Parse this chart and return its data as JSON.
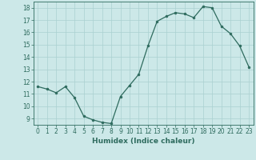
{
  "x": [
    0,
    1,
    2,
    3,
    4,
    5,
    6,
    7,
    8,
    9,
    10,
    11,
    12,
    13,
    14,
    15,
    16,
    17,
    18,
    19,
    20,
    21,
    22,
    23
  ],
  "y": [
    11.6,
    11.4,
    11.1,
    11.6,
    10.7,
    9.2,
    8.9,
    8.7,
    8.6,
    10.8,
    11.7,
    12.6,
    14.9,
    16.9,
    17.3,
    17.6,
    17.5,
    17.2,
    18.1,
    18.0,
    16.5,
    15.9,
    14.9,
    13.2
  ],
  "line_color": "#2e6b5e",
  "marker_color": "#2e6b5e",
  "bg_color": "#cce8e8",
  "grid_color": "#aad0d0",
  "xlabel": "Humidex (Indice chaleur)",
  "xlim": [
    -0.5,
    23.5
  ],
  "ylim": [
    8.5,
    18.5
  ],
  "yticks": [
    9,
    10,
    11,
    12,
    13,
    14,
    15,
    16,
    17,
    18
  ],
  "xticks": [
    0,
    1,
    2,
    3,
    4,
    5,
    6,
    7,
    8,
    9,
    10,
    11,
    12,
    13,
    14,
    15,
    16,
    17,
    18,
    19,
    20,
    21,
    22,
    23
  ],
  "tick_color": "#2e6b5e",
  "label_fontsize": 6.5,
  "tick_fontsize": 5.5
}
